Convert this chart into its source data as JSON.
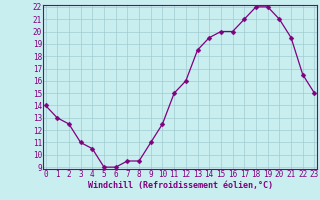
{
  "x": [
    0,
    1,
    2,
    3,
    4,
    5,
    6,
    7,
    8,
    9,
    10,
    11,
    12,
    13,
    14,
    15,
    16,
    17,
    18,
    19,
    20,
    21,
    22,
    23
  ],
  "y": [
    14,
    13,
    12.5,
    11,
    10.5,
    9,
    9,
    9.5,
    9.5,
    11,
    12.5,
    15,
    16,
    18.5,
    19.5,
    20,
    20,
    21,
    22,
    22,
    21,
    19.5,
    16.5,
    15
  ],
  "line_color": "#800080",
  "marker_color": "#800080",
  "bg_color": "#c8eef0",
  "grid_color": "#a0ccd0",
  "axis_color": "#800080",
  "spine_color": "#800080",
  "xlabel": "Windchill (Refroidissement éolien,°C)",
  "ylim_min": 9,
  "ylim_max": 22,
  "xlim_min": 0,
  "xlim_max": 23,
  "yticks": [
    9,
    10,
    11,
    12,
    13,
    14,
    15,
    16,
    17,
    18,
    19,
    20,
    21,
    22
  ],
  "xticks": [
    0,
    1,
    2,
    3,
    4,
    5,
    6,
    7,
    8,
    9,
    10,
    11,
    12,
    13,
    14,
    15,
    16,
    17,
    18,
    19,
    20,
    21,
    22,
    23
  ],
  "tick_fontsize": 5.5,
  "xlabel_fontsize": 6.0,
  "marker_size": 2.5,
  "linewidth": 0.9
}
